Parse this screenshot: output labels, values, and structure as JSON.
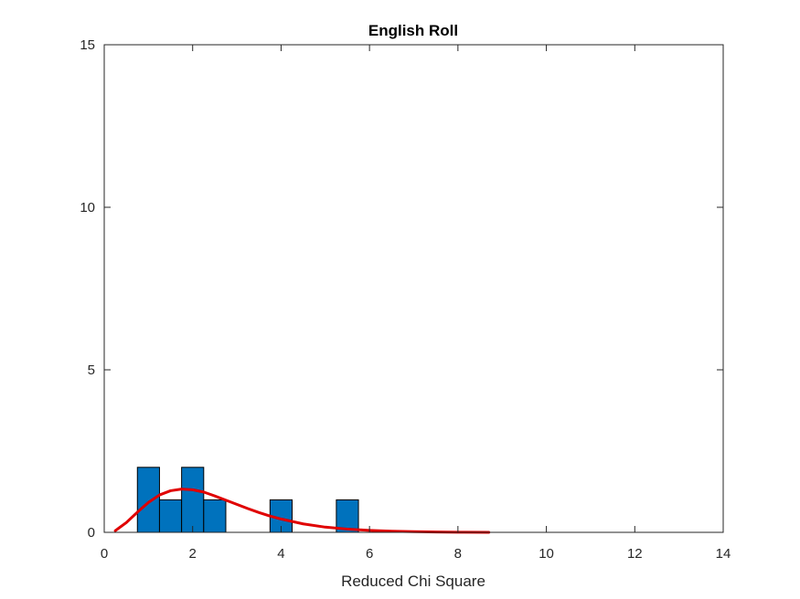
{
  "chart_data": {
    "type": "bar",
    "title": "English Roll",
    "xlabel": "Reduced Chi Square",
    "ylabel": "",
    "xlim": [
      0,
      14
    ],
    "ylim": [
      0,
      15
    ],
    "xticks": [
      0,
      2,
      4,
      6,
      8,
      10,
      12,
      14
    ],
    "yticks": [
      0,
      5,
      10,
      15
    ],
    "grid": false,
    "bin_width": 0.5,
    "bars": [
      {
        "x0": 0.75,
        "x1": 1.25,
        "count": 2
      },
      {
        "x0": 1.25,
        "x1": 1.75,
        "count": 1
      },
      {
        "x0": 1.75,
        "x1": 2.25,
        "count": 2
      },
      {
        "x0": 2.25,
        "x1": 2.75,
        "count": 1
      },
      {
        "x0": 3.75,
        "x1": 4.25,
        "count": 1
      },
      {
        "x0": 5.25,
        "x1": 5.75,
        "count": 1
      }
    ],
    "series": [
      {
        "type": "line",
        "x": [
          0.25,
          0.5,
          0.75,
          1.0,
          1.25,
          1.5,
          1.75,
          2.0,
          2.25,
          2.5,
          2.75,
          3.0,
          3.25,
          3.5,
          3.75,
          4.0,
          4.5,
          5.0,
          5.5,
          6.0,
          6.5,
          7.0,
          7.5,
          8.0,
          8.7
        ],
        "y": [
          0.05,
          0.3,
          0.62,
          0.92,
          1.15,
          1.28,
          1.33,
          1.31,
          1.24,
          1.12,
          0.99,
          0.86,
          0.73,
          0.61,
          0.5,
          0.41,
          0.26,
          0.16,
          0.1,
          0.06,
          0.035,
          0.02,
          0.01,
          0.005,
          0.0
        ]
      }
    ],
    "colors": {
      "bar_fill": "#0072BD",
      "bar_edge": "#000000",
      "fit_line": "#E00000",
      "axes": "#262626"
    }
  }
}
